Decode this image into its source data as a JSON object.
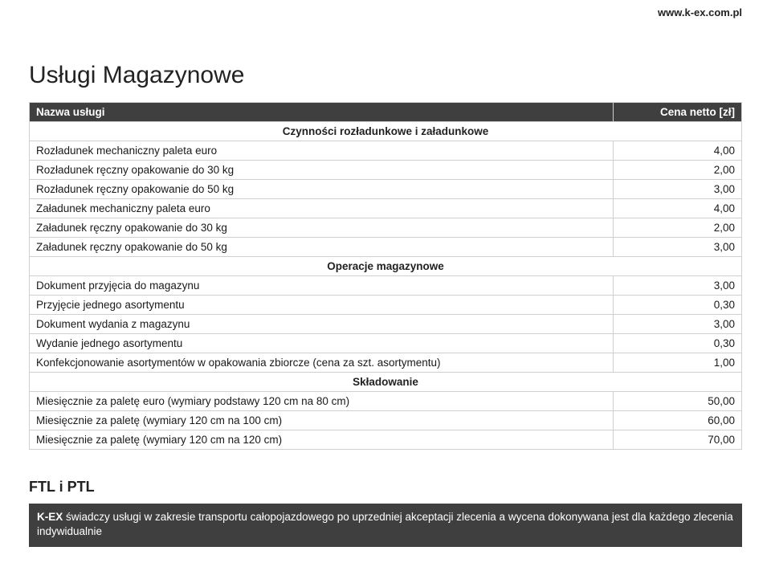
{
  "url": "www.k-ex.com.pl",
  "title": "Usługi Magazynowe",
  "table": {
    "header": {
      "name": "Nazwa usługi",
      "price": "Cena netto [zł]"
    },
    "colors": {
      "header_bg": "#3f3f3f",
      "header_fg": "#ffffff",
      "border": "#cfcfcf"
    },
    "sections": [
      {
        "heading": "Czynności rozładunkowe i załadunkowe",
        "rows": [
          {
            "label": "Rozładunek mechaniczny paleta euro",
            "value": "4,00"
          },
          {
            "label": "Rozładunek ręczny opakowanie do 30 kg",
            "value": "2,00"
          },
          {
            "label": "Rozładunek ręczny opakowanie do 50 kg",
            "value": "3,00"
          },
          {
            "label": "Załadunek mechaniczny paleta euro",
            "value": "4,00"
          },
          {
            "label": "Załadunek ręczny opakowanie do 30 kg",
            "value": "2,00"
          },
          {
            "label": "Załadunek ręczny opakowanie do 50 kg",
            "value": "3,00"
          }
        ]
      },
      {
        "heading": "Operacje magazynowe",
        "rows": [
          {
            "label": "Dokument przyjęcia do magazynu",
            "value": "3,00"
          },
          {
            "label": "Przyjęcie jednego asortymentu",
            "value": "0,30"
          },
          {
            "label": "Dokument wydania z magazynu",
            "value": "3,00"
          },
          {
            "label": "Wydanie jednego asortymentu",
            "value": "0,30"
          },
          {
            "label": "Konfekcjonowanie asortymentów w opakowania zbiorcze (cena za szt. asortymentu)",
            "value": "1,00"
          }
        ]
      },
      {
        "heading": "Składowanie",
        "rows": [
          {
            "label": "Miesięcznie za paletę euro (wymiary podstawy 120 cm na 80 cm)",
            "value": "50,00"
          },
          {
            "label": "Miesięcznie za paletę (wymiary 120 cm na 100 cm)",
            "value": "60,00"
          },
          {
            "label": "Miesięcznie za paletę (wymiary 120 cm na 120 cm)",
            "value": "70,00"
          }
        ]
      }
    ]
  },
  "ftl": {
    "title": "FTL i PTL",
    "brand": "K-EX",
    "text": " świadczy usługi w zakresie transportu całopojazdowego po uprzedniej akceptacji zlecenia a wycena dokonywana jest dla każdego zlecenia indywidualnie",
    "bg": "#3f3f3f",
    "fg": "#ffffff"
  }
}
